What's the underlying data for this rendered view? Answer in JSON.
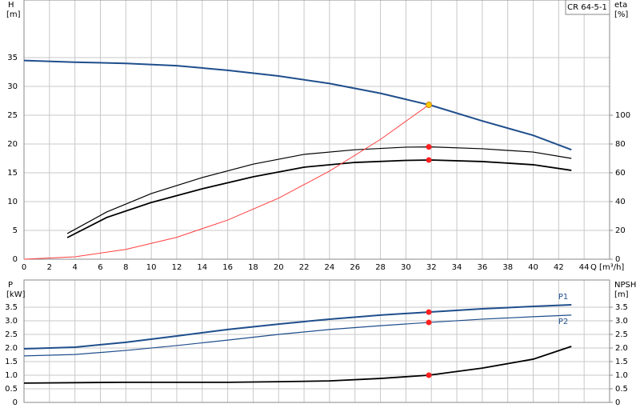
{
  "chart_data": [
    {
      "type": "line",
      "model": "CR 64-5-1",
      "ylabel": "H",
      "yunit": "[m]",
      "y2label": "eta",
      "y2unit": "[%]",
      "xlabel": "Q [m³/h]",
      "xlim": [
        0,
        46
      ],
      "xticks": [
        0,
        2,
        4,
        6,
        8,
        10,
        12,
        14,
        16,
        18,
        20,
        22,
        24,
        26,
        28,
        30,
        32,
        34,
        36,
        38,
        40,
        42,
        44
      ],
      "ylim": [
        0,
        45
      ],
      "yticks": [
        0,
        5,
        10,
        15,
        20,
        25,
        30,
        35
      ],
      "y2lim": [
        0,
        180
      ],
      "y2ticks": [
        0,
        20,
        40,
        60,
        80,
        100
      ],
      "grid": true,
      "series": [
        {
          "color": "#1f4e8c",
          "width": 2,
          "x": [
            0,
            4,
            8,
            12,
            16,
            20,
            24,
            28,
            32,
            36,
            40,
            43
          ],
          "values": [
            34.5,
            34.2,
            34,
            33.6,
            32.8,
            31.8,
            30.5,
            28.8,
            26.7,
            24,
            21.5,
            19
          ]
        },
        {
          "color": "#000000",
          "width": 1.2,
          "axis": "y2",
          "x": [
            3.4,
            6.5,
            10,
            14,
            18,
            22,
            26,
            30,
            32,
            36,
            40,
            43
          ],
          "values": [
            17.8,
            32.8,
            45.6,
            56.7,
            66,
            72.8,
            76,
            77.8,
            78,
            76.7,
            74.4,
            70
          ]
        },
        {
          "color": "#000000",
          "width": 1.8,
          "axis": "y2",
          "x": [
            3.4,
            6.5,
            10,
            14,
            18,
            22,
            26,
            30,
            32,
            36,
            40,
            43
          ],
          "values": [
            15,
            29,
            39.4,
            48.9,
            57.2,
            63.9,
            67.2,
            68.6,
            68.9,
            67.8,
            65.6,
            61.7
          ]
        },
        {
          "color": "#ff4040",
          "width": 1,
          "x": [
            0,
            4,
            8,
            12,
            16,
            20,
            24,
            28,
            31.8
          ],
          "values": [
            0,
            0.42,
            1.7,
            3.8,
            6.8,
            10.6,
            15.3,
            20.8,
            26.8
          ]
        }
      ],
      "markers": [
        {
          "x": 31.8,
          "y": 26.8,
          "color": "#ffcc00"
        },
        {
          "x": 31.8,
          "y": 78,
          "axis": "y2",
          "color": "#ff2020"
        },
        {
          "x": 31.8,
          "y": 68.9,
          "axis": "y2",
          "color": "#ff2020"
        }
      ]
    },
    {
      "type": "line",
      "ylabel": "P",
      "yunit": "[kW]",
      "y2label": "NPSH",
      "y2unit": "[m]",
      "xlim": [
        0,
        46
      ],
      "ylim": [
        0,
        4.5
      ],
      "yticks": [
        0,
        0.5,
        {
          "value": 1,
          "label": "1.0"
        },
        1.5,
        {
          "value": 2,
          "label": "2.0"
        },
        2.5,
        {
          "value": 3,
          "label": "3.0"
        },
        3.5
      ],
      "y2lim": [
        0,
        4.5
      ],
      "y2ticks": [
        0,
        0.5,
        {
          "value": 1,
          "label": "1.0"
        },
        1.5,
        {
          "value": 2,
          "label": "2.0"
        },
        2.5,
        {
          "value": 3,
          "label": "3.0"
        },
        3.5
      ],
      "grid": true,
      "series": [
        {
          "name": "P1",
          "color": "#1f4e8c",
          "width": 2,
          "x": [
            0,
            4,
            8,
            12,
            16,
            20,
            24,
            28,
            31.8,
            36,
            40,
            43
          ],
          "values": [
            1.97,
            2.03,
            2.21,
            2.44,
            2.68,
            2.88,
            3.06,
            3.21,
            3.32,
            3.44,
            3.53,
            3.59
          ]
        },
        {
          "name": "P2",
          "color": "#1f4e8c",
          "width": 1.2,
          "x": [
            0,
            4,
            8,
            12,
            16,
            20,
            24,
            28,
            31.8,
            36,
            40,
            43
          ],
          "values": [
            1.71,
            1.76,
            1.91,
            2.09,
            2.29,
            2.5,
            2.68,
            2.82,
            2.94,
            3.06,
            3.15,
            3.21
          ]
        },
        {
          "color": "#000000",
          "width": 1.8,
          "axis": "y2",
          "x": [
            0,
            8,
            16,
            20,
            24,
            28,
            31.8,
            36,
            40,
            43
          ],
          "values": [
            0.71,
            0.74,
            0.74,
            0.76,
            0.79,
            0.88,
            1,
            1.26,
            1.59,
            2.06
          ]
        }
      ],
      "markers": [
        {
          "x": 31.8,
          "y": 3.32,
          "color": "#ff2020"
        },
        {
          "x": 31.8,
          "y": 2.94,
          "color": "#ff2020"
        },
        {
          "x": 31.8,
          "y": 1,
          "axis": "y2",
          "color": "#ff2020"
        }
      ]
    }
  ]
}
